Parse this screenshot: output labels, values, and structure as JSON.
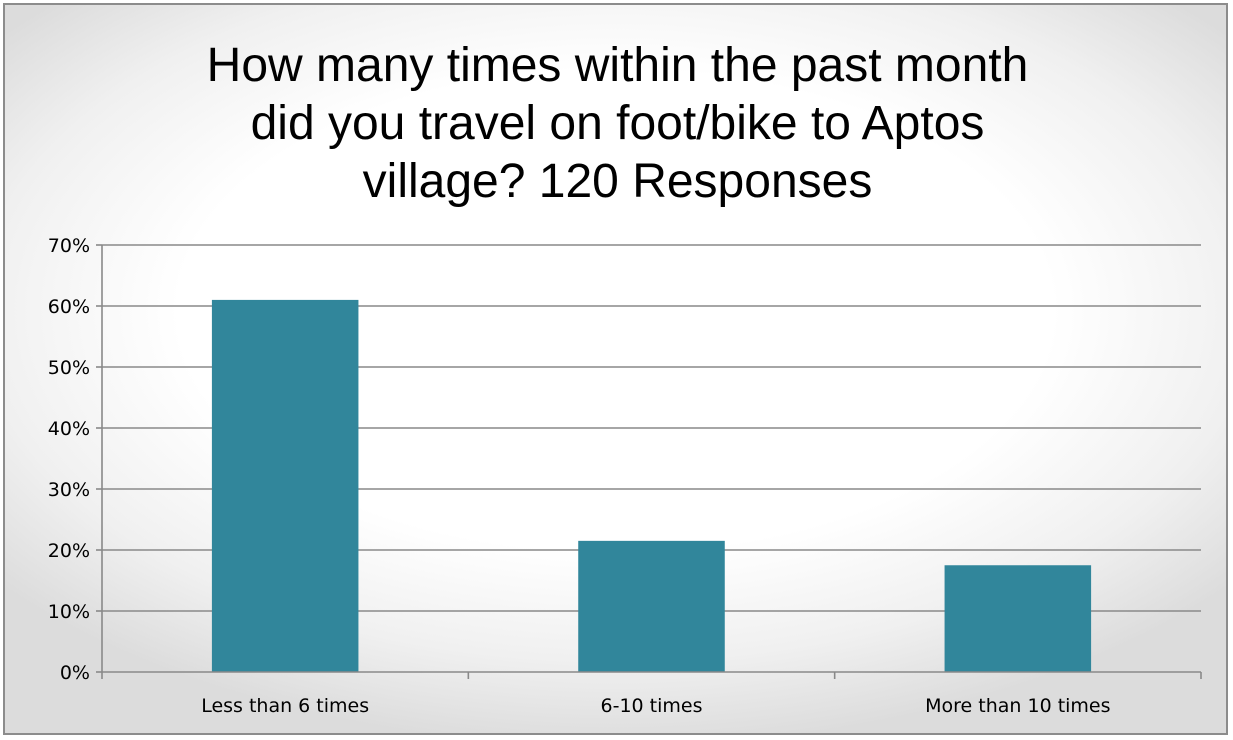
{
  "chart_data": {
    "type": "bar",
    "title": "How many times within the past month did you travel on foot/bike to Aptos village?  120 Responses",
    "title_lines": [
      "How many times within the past month",
      "did you travel on foot/bike to Aptos",
      "village?  120 Responses"
    ],
    "categories": [
      "Less than 6 times",
      "6-10 times",
      "More than 10 times"
    ],
    "values": [
      0.61,
      0.215,
      0.175
    ],
    "ylim": [
      0,
      0.7
    ],
    "yticks": [
      0,
      0.1,
      0.2,
      0.3,
      0.4,
      0.5,
      0.6,
      0.7
    ],
    "ytick_labels": [
      "0%",
      "10%",
      "20%",
      "30%",
      "40%",
      "50%",
      "60%",
      "70%"
    ],
    "xlabel": "",
    "ylabel": "",
    "grid": true,
    "legend": "none",
    "bar_color": "#31869b",
    "grid_color": "#898989"
  }
}
